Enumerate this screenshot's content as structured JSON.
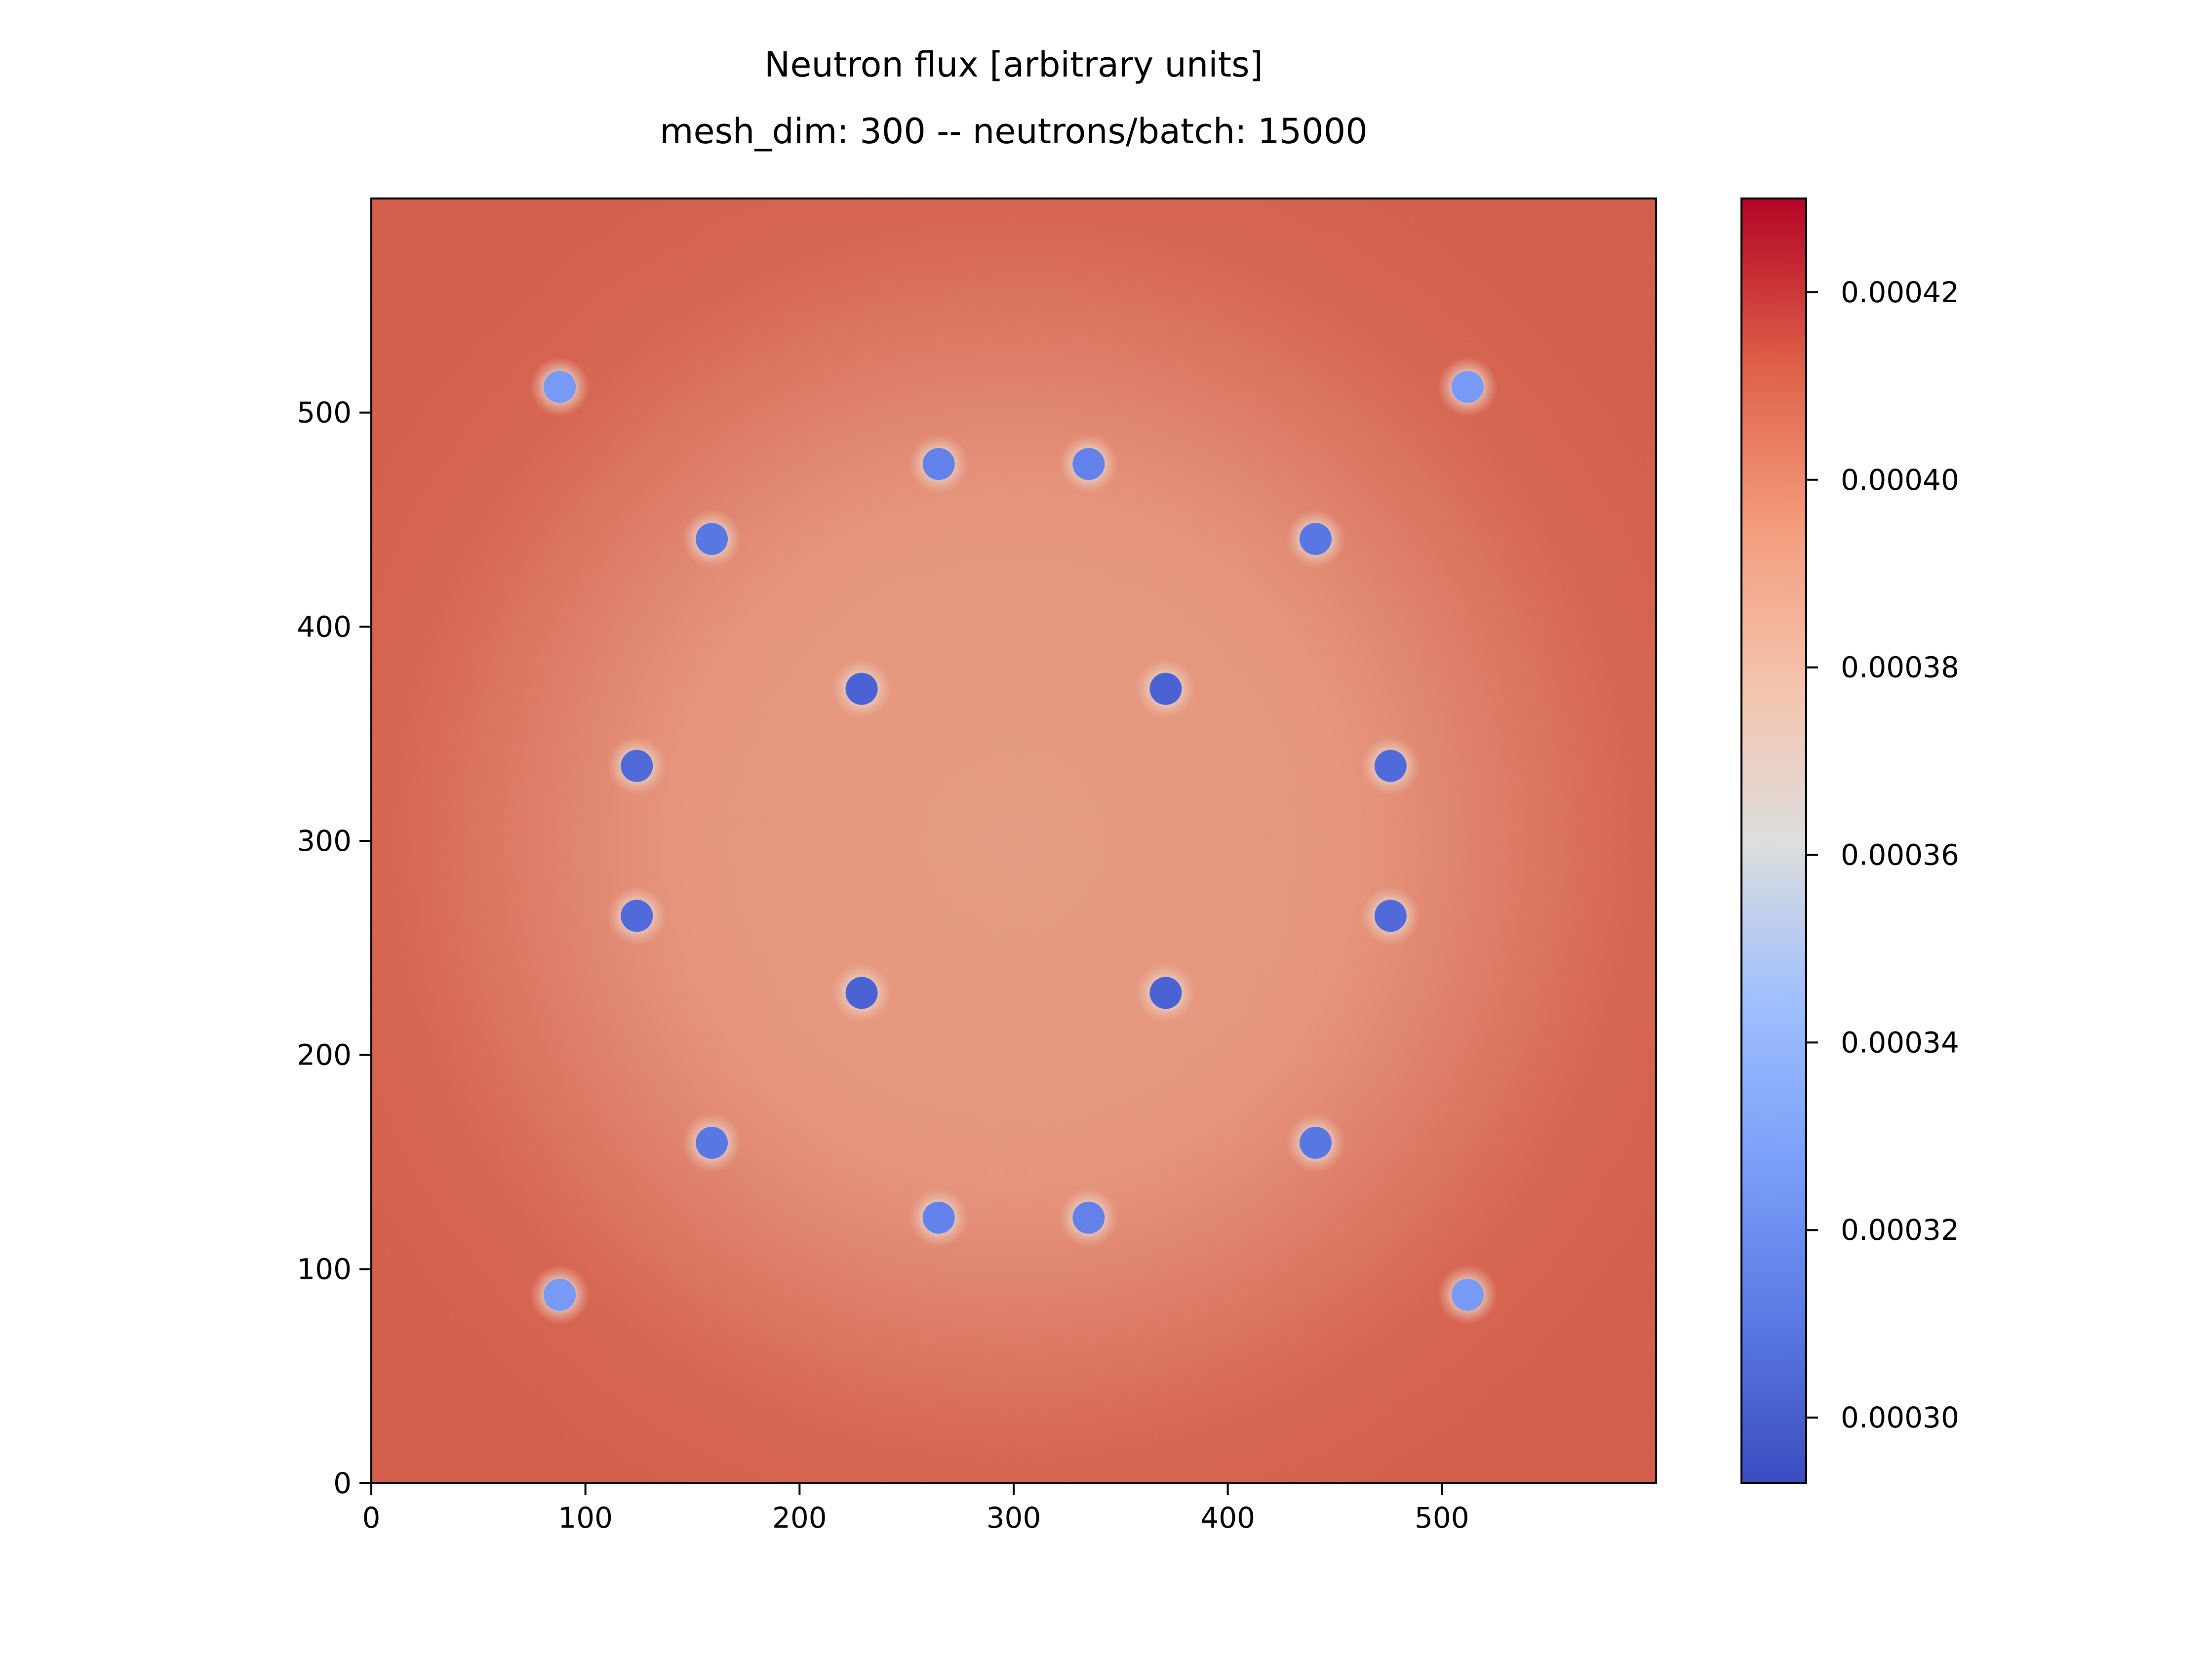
{
  "chart_data": {
    "type": "heatmap",
    "title": "Neutron flux [arbitrary units]",
    "subtitle": "mesh_dim: 300 -- neutrons/batch: 15000",
    "xlabel": "",
    "ylabel": "",
    "xlim": [
      0,
      600
    ],
    "ylim": [
      0,
      600
    ],
    "x_ticks": [
      0,
      100,
      200,
      300,
      400,
      500
    ],
    "y_ticks": [
      0,
      100,
      200,
      300,
      400,
      500
    ],
    "x_tick_labels": [
      "0",
      "100",
      "200",
      "300",
      "400",
      "500"
    ],
    "y_tick_labels": [
      "0",
      "100",
      "200",
      "300",
      "400",
      "500"
    ],
    "colormap": "coolwarm",
    "colorbar": {
      "range": [
        0.000293,
        0.00043
      ],
      "ticks": [
        0.0003,
        0.00032,
        0.00034,
        0.00036,
        0.00038,
        0.0004,
        0.00042
      ],
      "tick_labels": [
        "0.00030",
        "0.00032",
        "0.00034",
        "0.00036",
        "0.00038",
        "0.00040",
        "0.00042"
      ]
    },
    "background_flux": {
      "edge": 0.000415,
      "center": 0.00039
    },
    "absorbers": [
      {
        "x": 88,
        "y": 512,
        "flux": 0.000325
      },
      {
        "x": 512,
        "y": 512,
        "flux": 0.000325
      },
      {
        "x": 88,
        "y": 88,
        "flux": 0.000325
      },
      {
        "x": 512,
        "y": 88,
        "flux": 0.000325
      },
      {
        "x": 265,
        "y": 476,
        "flux": 0.000315
      },
      {
        "x": 335,
        "y": 476,
        "flux": 0.000315
      },
      {
        "x": 265,
        "y": 124,
        "flux": 0.000315
      },
      {
        "x": 335,
        "y": 124,
        "flux": 0.000315
      },
      {
        "x": 159,
        "y": 441,
        "flux": 0.00031
      },
      {
        "x": 441,
        "y": 441,
        "flux": 0.00031
      },
      {
        "x": 159,
        "y": 159,
        "flux": 0.00031
      },
      {
        "x": 441,
        "y": 159,
        "flux": 0.00031
      },
      {
        "x": 229,
        "y": 371,
        "flux": 0.000302
      },
      {
        "x": 371,
        "y": 371,
        "flux": 0.000302
      },
      {
        "x": 229,
        "y": 229,
        "flux": 0.000302
      },
      {
        "x": 371,
        "y": 229,
        "flux": 0.000302
      },
      {
        "x": 124,
        "y": 335,
        "flux": 0.000305
      },
      {
        "x": 476,
        "y": 335,
        "flux": 0.000305
      },
      {
        "x": 124,
        "y": 265,
        "flux": 0.000305
      },
      {
        "x": 476,
        "y": 265,
        "flux": 0.000305
      }
    ],
    "grid": false
  }
}
